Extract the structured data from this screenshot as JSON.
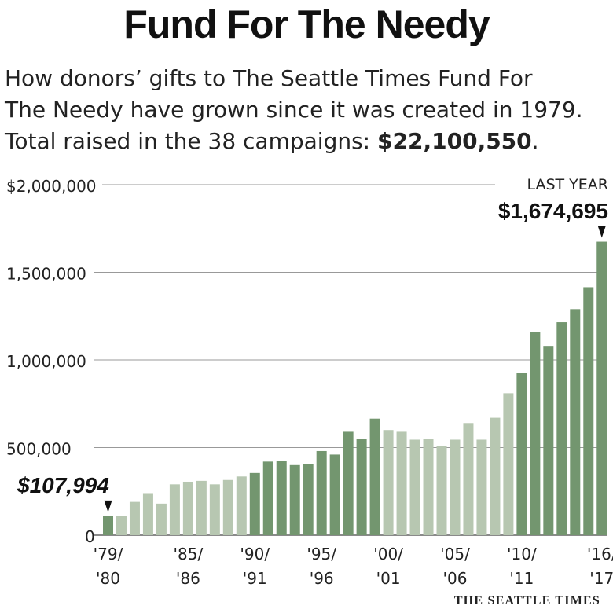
{
  "header": {
    "title": "Fund For The Needy",
    "subtitle_line1": "How donors’ gifts to The Seattle Times Fund For",
    "subtitle_line2": "The Needy have grown since it was created in 1979.",
    "subtitle_line3_prefix": "Total raised in the 38 campaigns: ",
    "subtitle_total": "$22,100,550",
    "subtitle_line3_suffix": "."
  },
  "colors": {
    "dark_bar": "#73966f",
    "light_bar": "#b7c7b1",
    "grid": "#999999",
    "text": "#222222"
  },
  "chart_data": {
    "type": "bar",
    "title": "",
    "xlabel": "",
    "ylabel": "",
    "ylim": [
      0,
      2000000
    ],
    "y_ticks": [
      {
        "value": 2000000,
        "label": "$2,000,000"
      },
      {
        "value": 1500000,
        "label": "1,500,000"
      },
      {
        "value": 1000000,
        "label": "1,000,000"
      },
      {
        "value": 500000,
        "label": "500,000"
      },
      {
        "value": 0,
        "label": "0"
      }
    ],
    "x_tick_labels": [
      {
        "index": 0,
        "top": "'79/",
        "bottom": "'80"
      },
      {
        "index": 6,
        "top": "'85/",
        "bottom": "'86"
      },
      {
        "index": 11,
        "top": "'90/",
        "bottom": "'91"
      },
      {
        "index": 16,
        "top": "'95/",
        "bottom": "'96"
      },
      {
        "index": 21,
        "top": "'00/",
        "bottom": "'01"
      },
      {
        "index": 26,
        "top": "'05/",
        "bottom": "'06"
      },
      {
        "index": 31,
        "top": "'10/",
        "bottom": "'11"
      },
      {
        "index": 37,
        "top": "'16/",
        "bottom": "'17"
      }
    ],
    "categories": [
      "1979/80",
      "1980/81",
      "1981/82",
      "1982/83",
      "1983/84",
      "1984/85",
      "1985/86",
      "1986/87",
      "1987/88",
      "1988/89",
      "1989/90",
      "1990/91",
      "1991/92",
      "1992/93",
      "1993/94",
      "1994/95",
      "1995/96",
      "1996/97",
      "1997/98",
      "1998/99",
      "1999/00",
      "2000/01",
      "2001/02",
      "2002/03",
      "2003/04",
      "2004/05",
      "2005/06",
      "2006/07",
      "2007/08",
      "2008/09",
      "2009/10",
      "2010/11",
      "2011/12",
      "2012/13",
      "2013/14",
      "2014/15",
      "2015/16",
      "2016/17"
    ],
    "values": [
      107994,
      110000,
      190000,
      240000,
      180000,
      290000,
      305000,
      310000,
      290000,
      315000,
      335000,
      355000,
      420000,
      425000,
      400000,
      405000,
      480000,
      460000,
      590000,
      550000,
      665000,
      600000,
      590000,
      545000,
      550000,
      510000,
      545000,
      640000,
      545000,
      670000,
      810000,
      925000,
      1160000,
      1080000,
      1215000,
      1290000,
      1415000,
      1674695
    ],
    "shade": [
      "d",
      "l",
      "l",
      "l",
      "l",
      "l",
      "l",
      "l",
      "l",
      "l",
      "l",
      "d",
      "d",
      "d",
      "d",
      "d",
      "d",
      "d",
      "d",
      "d",
      "d",
      "l",
      "l",
      "l",
      "l",
      "l",
      "l",
      "l",
      "l",
      "l",
      "l",
      "d",
      "d",
      "d",
      "d",
      "d",
      "d",
      "d"
    ],
    "annotations": [
      {
        "index": 0,
        "label": "$107,994"
      },
      {
        "index": 37,
        "label": "$1,674,695",
        "caption": "LAST YEAR"
      }
    ]
  },
  "footer": {
    "credit": "THE SEATTLE TIMES"
  }
}
